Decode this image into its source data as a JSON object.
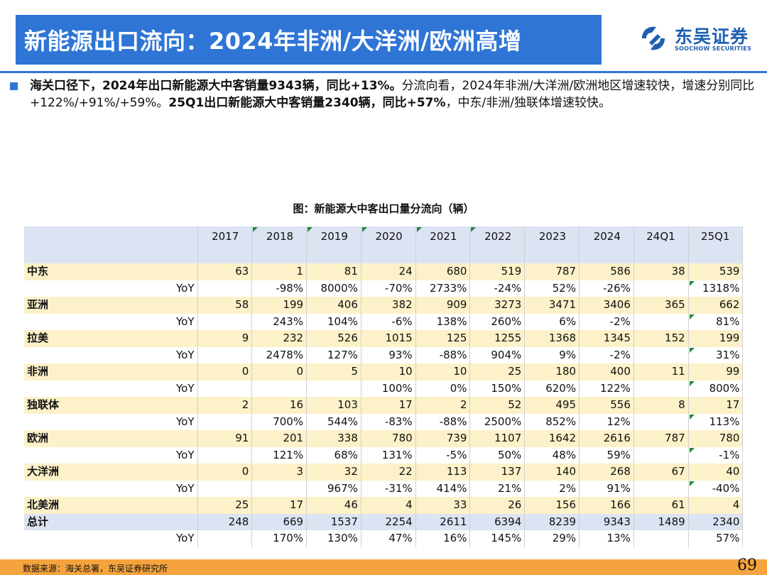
{
  "title": "新能源出口流向：2024年非洲/大洋洲/欧洲高增",
  "logo": {
    "cn": "东吴证券",
    "en": "SOOCHOW SECURITIES"
  },
  "paragraph": {
    "bold1": "海关口径下，2024年出口新能源大中客销量9343辆，同比+13%。",
    "normal1": "分流向看，2024年非洲/大洋洲/欧洲地区增速较快，增速分别同比+122%/+91%/+59%。",
    "bold2": "25Q1出口新能源大中客销量2340辆，同比+57%",
    "normal2": "，中东/非洲/独联体增速较快。"
  },
  "figure_caption": "图：新能源大中客出口量分流向（辆）",
  "table": {
    "years": [
      "2017",
      "2018",
      "2019",
      "2020",
      "2021",
      "2022",
      "2023",
      "2024",
      "24Q1",
      "25Q1"
    ],
    "yoy_label": "YoY",
    "rows": [
      {
        "region": "中东",
        "values": [
          "63",
          "1",
          "81",
          "24",
          "680",
          "519",
          "787",
          "586",
          "38",
          "539"
        ],
        "yoy": [
          "",
          "-98%",
          "8000%",
          "-70%",
          "2733%",
          "-24%",
          "52%",
          "-26%",
          "",
          "1318%"
        ]
      },
      {
        "region": "亚洲",
        "values": [
          "58",
          "199",
          "406",
          "382",
          "909",
          "3273",
          "3471",
          "3406",
          "365",
          "662"
        ],
        "yoy": [
          "",
          "243%",
          "104%",
          "-6%",
          "138%",
          "260%",
          "6%",
          "-2%",
          "",
          "81%"
        ]
      },
      {
        "region": "拉美",
        "values": [
          "9",
          "232",
          "526",
          "1015",
          "125",
          "1255",
          "1368",
          "1345",
          "152",
          "199"
        ],
        "yoy": [
          "",
          "2478%",
          "127%",
          "93%",
          "-88%",
          "904%",
          "9%",
          "-2%",
          "",
          "31%"
        ]
      },
      {
        "region": "非洲",
        "values": [
          "0",
          "0",
          "5",
          "10",
          "10",
          "25",
          "180",
          "400",
          "11",
          "99"
        ],
        "yoy": [
          "",
          "",
          "",
          "100%",
          "0%",
          "150%",
          "620%",
          "122%",
          "",
          "800%"
        ]
      },
      {
        "region": "独联体",
        "values": [
          "2",
          "16",
          "103",
          "17",
          "2",
          "52",
          "495",
          "556",
          "8",
          "17"
        ],
        "yoy": [
          "",
          "700%",
          "544%",
          "-83%",
          "-88%",
          "2500%",
          "852%",
          "12%",
          "",
          "113%"
        ]
      },
      {
        "region": "欧洲",
        "values": [
          "91",
          "201",
          "338",
          "780",
          "739",
          "1107",
          "1642",
          "2616",
          "787",
          "780"
        ],
        "yoy": [
          "",
          "121%",
          "68%",
          "131%",
          "-5%",
          "50%",
          "48%",
          "59%",
          "",
          "-1%"
        ]
      },
      {
        "region": "大洋洲",
        "values": [
          "0",
          "3",
          "32",
          "22",
          "113",
          "137",
          "140",
          "268",
          "67",
          "40"
        ],
        "yoy": [
          "",
          "",
          "967%",
          "-31%",
          "414%",
          "21%",
          "2%",
          "91%",
          "",
          "-40%"
        ]
      },
      {
        "region": "北美洲",
        "values": [
          "25",
          "17",
          "46",
          "4",
          "33",
          "26",
          "156",
          "166",
          "61",
          "4"
        ],
        "yoy": null
      },
      {
        "region": "总计",
        "values": [
          "248",
          "669",
          "1537",
          "2254",
          "2611",
          "6394",
          "8239",
          "9343",
          "1489",
          "2340"
        ],
        "yoy": [
          "",
          "170%",
          "130%",
          "47%",
          "16%",
          "145%",
          "29%",
          "13%",
          "",
          "57%"
        ],
        "total": true
      }
    ]
  },
  "source": "数据来源：海关总署，东吴证券研究所",
  "page_number": "69",
  "colors": {
    "title_bg": "#2E75D6",
    "region_row": "#FDF1C9",
    "header_row": "#DCE3F3",
    "footer": "#F5A33E"
  }
}
